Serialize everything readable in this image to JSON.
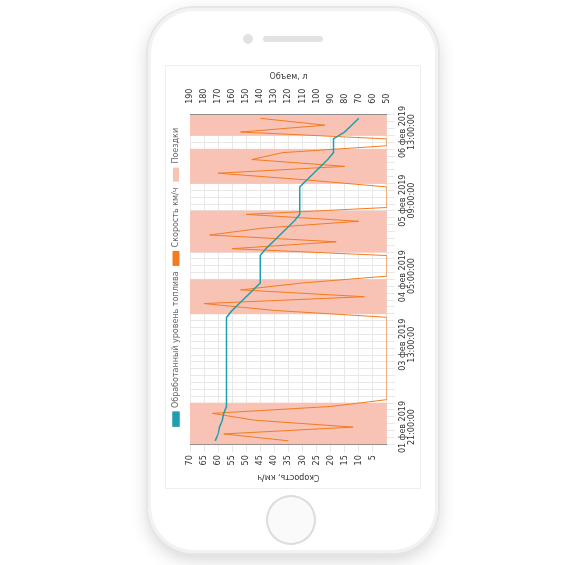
{
  "chart_data": {
    "type": "line",
    "categories": [
      null,
      null,
      "01 фев 2019 21:00:00",
      null,
      null,
      null,
      null,
      null,
      null,
      null,
      null,
      null,
      null,
      null,
      "03 фев 2019 13:00:00",
      null,
      null,
      null,
      null,
      null,
      null,
      null,
      null,
      null,
      "04 фев 2019 05:00:00",
      null,
      null,
      null,
      null,
      null,
      null,
      null,
      null,
      null,
      null,
      "05 фев 2019 09:00:00",
      null,
      null,
      null,
      null,
      null,
      null,
      null,
      null,
      null,
      "06 фев 2019 13:00:00",
      null,
      null
    ],
    "series": [
      {
        "name": "Скорость км/ч",
        "type": "line",
        "color": "#f47b20",
        "values": [
          35,
          58,
          12,
          47,
          62,
          20,
          0,
          0,
          0,
          0,
          0,
          0,
          0,
          0,
          0,
          0,
          0,
          0,
          0,
          40,
          65,
          8,
          52,
          30,
          0,
          0,
          0,
          0,
          55,
          18,
          63,
          44,
          10,
          50,
          0,
          0,
          0,
          0,
          28,
          60,
          15,
          48,
          37,
          0,
          0,
          52,
          22,
          45
        ]
      },
      {
        "name": "Обработанный уровень топлива",
        "type": "line",
        "color": "#1f9fae",
        "axis": "y2",
        "values": [
          172,
          170,
          169,
          167,
          166,
          164,
          164,
          164,
          164,
          164,
          164,
          164,
          164,
          164,
          164,
          164,
          164,
          164,
          164,
          160,
          155,
          150,
          145,
          140,
          140,
          140,
          140,
          140,
          136,
          131,
          126,
          121,
          116,
          112,
          112,
          112,
          112,
          112,
          107,
          102,
          97,
          92,
          88,
          88,
          88,
          80,
          75,
          70
        ]
      },
      {
        "name": "Поездки",
        "type": "bar",
        "color": "#f8c3b5",
        "values": [
          70,
          70,
          70,
          70,
          70,
          70,
          null,
          null,
          null,
          null,
          null,
          null,
          null,
          null,
          null,
          null,
          null,
          null,
          null,
          70,
          70,
          70,
          70,
          70,
          null,
          null,
          null,
          null,
          70,
          70,
          70,
          70,
          70,
          70,
          null,
          null,
          null,
          null,
          70,
          70,
          70,
          70,
          70,
          null,
          null,
          70,
          70,
          70
        ]
      }
    ],
    "ylabel": "Скорость, км/ч",
    "y2label": "Объем, л",
    "ylim": [
      0,
      70
    ],
    "yticks": [
      5,
      10,
      15,
      20,
      25,
      30,
      35,
      40,
      45,
      50,
      55,
      60,
      65,
      70
    ],
    "y2lim": [
      50,
      190
    ],
    "y2ticks": [
      50,
      60,
      70,
      80,
      90,
      100,
      110,
      120,
      130,
      140,
      150,
      160,
      170,
      180,
      190
    ],
    "grid": true,
    "legend": "top"
  }
}
